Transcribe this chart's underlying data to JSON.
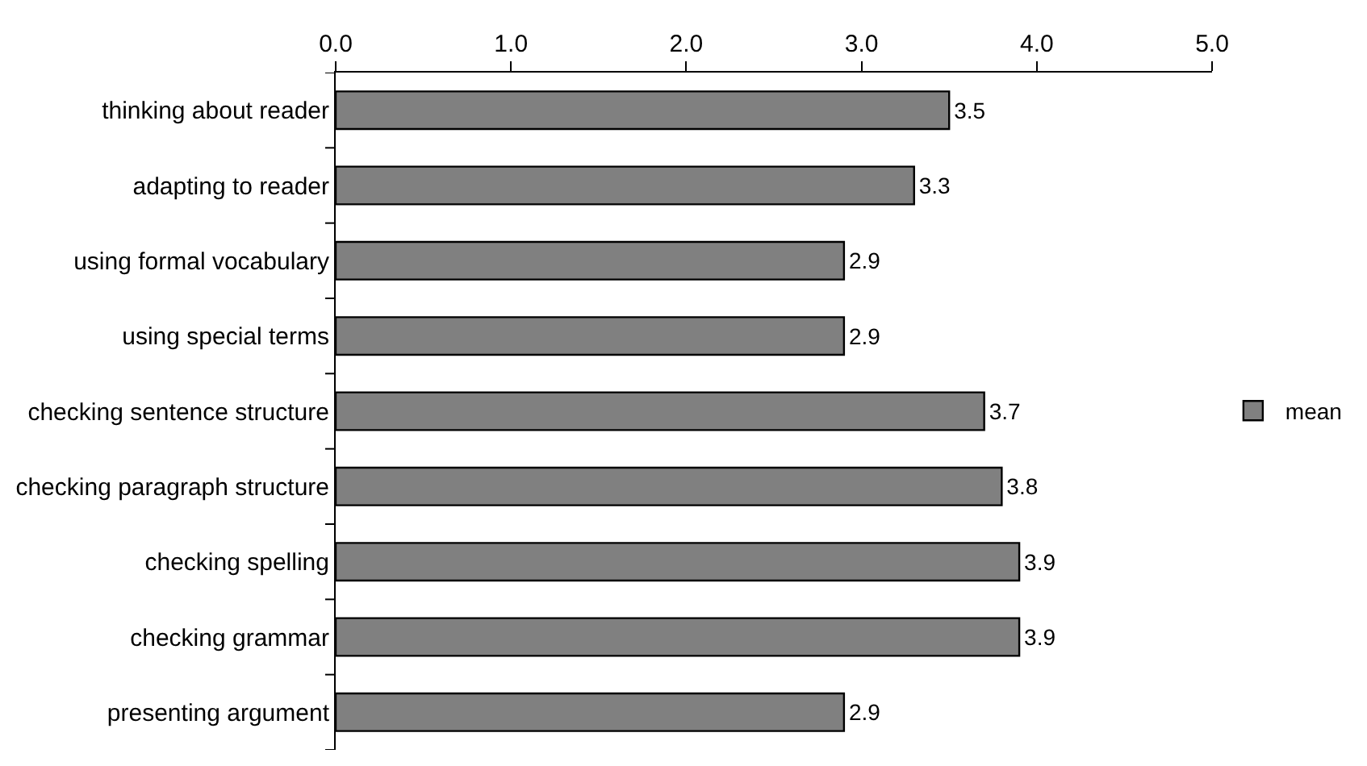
{
  "chart_data": {
    "type": "bar",
    "orientation": "horizontal",
    "categories": [
      "thinking about reader",
      "adapting to reader",
      "using formal vocabulary",
      "using special terms",
      "checking sentence structure",
      "checking paragraph structure",
      "checking spelling",
      "checking grammar",
      "presenting argument"
    ],
    "series": [
      {
        "name": "mean",
        "color": "#808080",
        "values": [
          3.5,
          3.3,
          2.9,
          2.9,
          3.7,
          3.8,
          3.9,
          3.9,
          2.9
        ]
      }
    ],
    "xlim": [
      0,
      5
    ],
    "xticks": [
      {
        "value": 0,
        "label": "0.0"
      },
      {
        "value": 1,
        "label": "1.0"
      },
      {
        "value": 2,
        "label": "2.0"
      },
      {
        "value": 3,
        "label": "3.0"
      },
      {
        "value": 4,
        "label": "4.0"
      },
      {
        "value": 5,
        "label": "5.0"
      }
    ],
    "data_labels": true,
    "legend": "right"
  }
}
